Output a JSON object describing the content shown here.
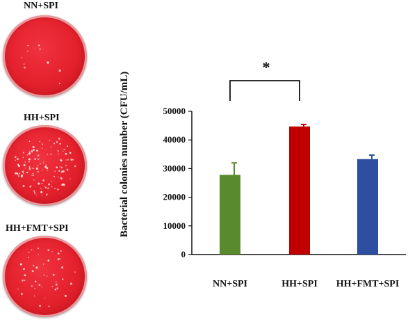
{
  "plates": [
    {
      "label": "NN+SPI",
      "colony_density": "low"
    },
    {
      "label": "HH+SPI",
      "colony_density": "high"
    },
    {
      "label": "HH+FMT+SPI",
      "colony_density": "medium"
    }
  ],
  "chart_data": {
    "type": "bar",
    "categories": [
      "NN+SPI",
      "HH+SPI",
      "HH+FMT+SPI"
    ],
    "values": [
      27800,
      44700,
      33300
    ],
    "errors": [
      4200,
      700,
      1400
    ],
    "colors": [
      "#5a8a2e",
      "#c00000",
      "#2e4fa0"
    ],
    "title": "",
    "xlabel": "",
    "ylabel": "Bacterial colonies number (CFU/mL)",
    "ylim": [
      0,
      50000
    ],
    "yticks": [
      "0",
      "10000",
      "20000",
      "30000",
      "40000",
      "50000"
    ],
    "significance": {
      "between": [
        "NN+SPI",
        "HH+SPI"
      ],
      "label": "*"
    },
    "grid": false,
    "legend": "none"
  }
}
